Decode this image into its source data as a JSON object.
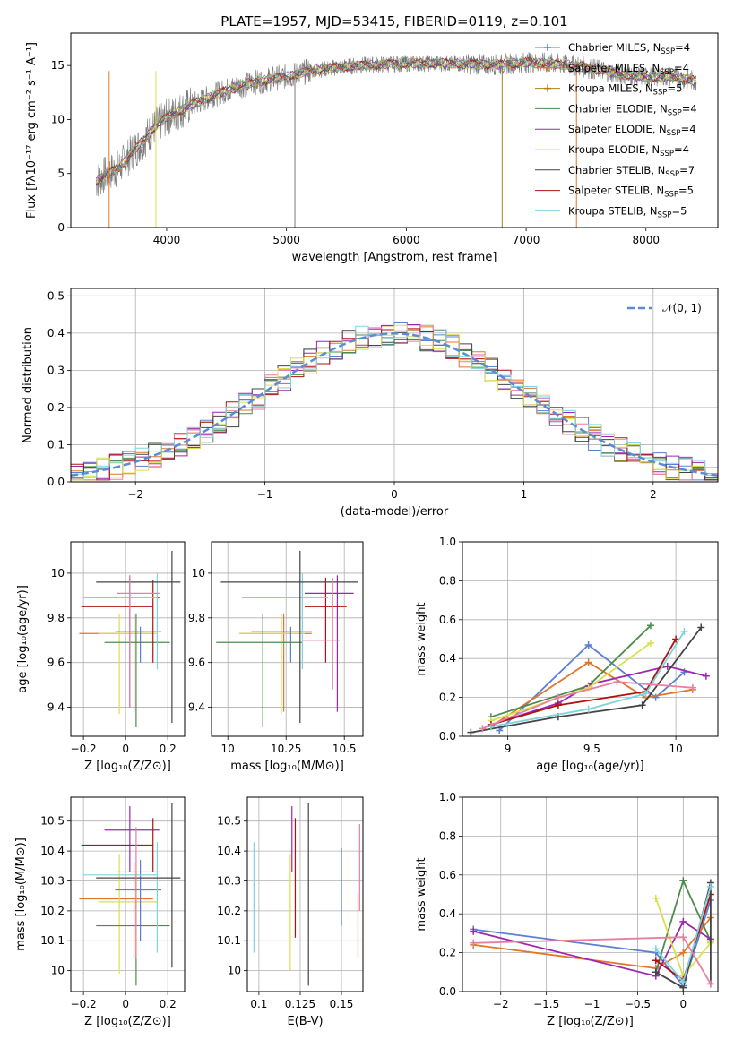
{
  "figure_title": "PLATE=1957, MJD=53415, FIBERID=0119, z=0.101",
  "chart_data": [
    {
      "id": "spectrum",
      "type": "line",
      "xlabel": "wavelength [Angstrom, rest frame]",
      "ylabel": "Flux [fλ10⁻¹⁷ erg cm⁻² s⁻¹ A⁻¹]",
      "xlim": [
        3200,
        8600
      ],
      "ylim": [
        0,
        18
      ],
      "xticks": [
        4000,
        5000,
        6000,
        7000,
        8000
      ],
      "yticks": [
        0,
        5,
        10,
        15
      ],
      "grid": false,
      "legend_position": "top-right",
      "spectrum_envelope": {
        "wavelength": [
          3400,
          3500,
          3600,
          3700,
          3800,
          3900,
          4000,
          4200,
          4400,
          4600,
          4800,
          5000,
          5200,
          5400,
          5600,
          5800,
          6000,
          6200,
          6400,
          6600,
          6800,
          7000,
          7200,
          7400,
          7600,
          7800,
          8000,
          8200,
          8400
        ],
        "flux": [
          4.2,
          5.0,
          5.5,
          6.8,
          8.0,
          9.3,
          10.2,
          11.3,
          12.3,
          13.1,
          13.6,
          14.0,
          14.5,
          14.8,
          15.0,
          15.1,
          15.2,
          15.2,
          15.2,
          15.1,
          15.1,
          15.3,
          15.2,
          15.0,
          14.6,
          14.2,
          13.9,
          14.0,
          13.6
        ]
      },
      "series": [
        {
          "name": "Chabrier MILES, N$_{SSP}$=4",
          "color": "#5b7fd4",
          "marker": "+"
        },
        {
          "name": "Salpeter MILES, N$_{SSP}$=4",
          "color": "#e0762c",
          "marker": "+"
        },
        {
          "name": "Kroupa MILES, N$_{SSP}$=5",
          "color": "#b07f18",
          "marker": "+"
        },
        {
          "name": "Chabrier ELODIE, N$_{SSP}$=4",
          "color": "#4d8b4d",
          "marker": ""
        },
        {
          "name": "Salpeter ELODIE, N$_{SSP}$=4",
          "color": "#9b27b0",
          "marker": ""
        },
        {
          "name": "Kroupa ELODIE, N$_{SSP}$=4",
          "color": "#d9e04a",
          "marker": ""
        },
        {
          "name": "Chabrier STELIB, N$_{SSP}$=7",
          "color": "#444444",
          "marker": ""
        },
        {
          "name": "Salpeter STELIB, N$_{SSP}$=5",
          "color": "#b01212",
          "marker": ""
        },
        {
          "name": "Kroupa STELIB, N$_{SSP}$=5",
          "color": "#7fd3dd",
          "marker": ""
        }
      ]
    },
    {
      "id": "residual_hist",
      "type": "bar",
      "xlabel": "(data-model)/error",
      "ylabel": "Normed distribution",
      "xlim": [
        -2.5,
        2.5
      ],
      "ylim": [
        0,
        0.52
      ],
      "xticks": [
        -2,
        -1,
        0,
        1,
        2
      ],
      "yticks": [
        0.0,
        0.1,
        0.2,
        0.3,
        0.4,
        0.5
      ],
      "grid": true,
      "legend_position": "top-right",
      "legend_label": "𝒩(0, 1)",
      "reference_curve": "gaussian(0,1)",
      "bin_width": 0.1,
      "hist_colors": [
        "#5b7fd4",
        "#e0762c",
        "#4d8b4d",
        "#9b27b0",
        "#e87fa0",
        "#b01212",
        "#444444",
        "#d9e04a",
        "#7fd3dd"
      ]
    },
    {
      "id": "age_vs_Z",
      "type": "scatter",
      "xlabel": "Z [log₁₀(Z/Z⊙)]",
      "ylabel": "age  [log₁₀(age/yr)]",
      "xlim": [
        -0.26,
        0.28
      ],
      "ylim": [
        9.27,
        10.14
      ],
      "xticks": [
        -0.2,
        0.0,
        0.2
      ],
      "yticks": [
        9.4,
        9.6,
        9.8,
        10.0
      ],
      "grid": true,
      "points": [
        {
          "x": -0.21,
          "y": 9.73,
          "xlo": -0.22,
          "xhi": 0.13,
          "ylo": 9.73,
          "yhi": 9.73,
          "color": "#e0762c"
        },
        {
          "x": 0.04,
          "y": 9.74,
          "xlo": 0.04,
          "xhi": 0.04,
          "ylo": 9.38,
          "yhi": 9.82,
          "color": "#e0762c"
        },
        {
          "x": -0.03,
          "y": 9.73,
          "xlo": -0.13,
          "xhi": 0.15,
          "ylo": 9.37,
          "yhi": 9.82,
          "color": "#d9e04a"
        },
        {
          "x": 0.07,
          "y": 9.74,
          "xlo": -0.05,
          "xhi": 0.17,
          "ylo": 9.6,
          "yhi": 9.76,
          "color": "#5b7fd4"
        },
        {
          "x": 0.02,
          "y": 9.89,
          "xlo": -0.04,
          "xhi": 0.16,
          "ylo": 9.4,
          "yhi": 9.99,
          "color": "#9b27b0"
        },
        {
          "x": 0.05,
          "y": 9.69,
          "xlo": -0.1,
          "xhi": 0.21,
          "ylo": 9.31,
          "yhi": 9.82,
          "color": "#4d8b4d"
        },
        {
          "x": 0.13,
          "y": 9.85,
          "xlo": -0.21,
          "xhi": 0.13,
          "ylo": 9.6,
          "yhi": 9.97,
          "color": "#b01212"
        },
        {
          "x": 0.15,
          "y": 9.89,
          "xlo": -0.2,
          "xhi": 0.15,
          "ylo": 9.57,
          "yhi": 10.0,
          "color": "#7fd3dd"
        },
        {
          "x": 0.22,
          "y": 9.96,
          "xlo": -0.14,
          "xhi": 0.26,
          "ylo": 9.33,
          "yhi": 10.1,
          "color": "#444444"
        },
        {
          "x": 0.02,
          "y": 9.91,
          "xlo": -0.04,
          "xhi": 0.16,
          "ylo": 9.4,
          "yhi": 9.99,
          "color": "#e87fa0"
        }
      ]
    },
    {
      "id": "age_vs_mass",
      "type": "scatter",
      "xlabel": "mass [log₁₀(M/M⊙)]",
      "ylabel": "",
      "xlim": [
        9.93,
        10.58
      ],
      "ylim": [
        9.27,
        10.14
      ],
      "xticks": [
        10.0,
        10.25,
        10.5
      ],
      "yticks": [
        9.4,
        9.6,
        9.8,
        10.0
      ],
      "grid": true,
      "points": [
        {
          "x": 10.24,
          "y": 9.73,
          "xlo": 10.05,
          "xhi": 10.36,
          "ylo": 9.38,
          "yhi": 9.82,
          "color": "#e0762c"
        },
        {
          "x": 10.23,
          "y": 9.73,
          "xlo": 10.05,
          "xhi": 10.33,
          "ylo": 9.37,
          "yhi": 9.82,
          "color": "#d9e04a"
        },
        {
          "x": 10.27,
          "y": 9.74,
          "xlo": 10.1,
          "xhi": 10.36,
          "ylo": 9.6,
          "yhi": 9.76,
          "color": "#5b7fd4"
        },
        {
          "x": 10.47,
          "y": 9.91,
          "xlo": 10.33,
          "xhi": 10.54,
          "ylo": 9.38,
          "yhi": 9.99,
          "color": "#9b27b0"
        },
        {
          "x": 10.15,
          "y": 9.69,
          "xlo": 9.95,
          "xhi": 10.32,
          "ylo": 9.31,
          "yhi": 9.82,
          "color": "#4d8b4d"
        },
        {
          "x": 10.42,
          "y": 9.85,
          "xlo": 10.33,
          "xhi": 10.51,
          "ylo": 9.6,
          "yhi": 9.98,
          "color": "#b01212"
        },
        {
          "x": 10.32,
          "y": 9.89,
          "xlo": 10.06,
          "xhi": 10.43,
          "ylo": 9.57,
          "yhi": 10.0,
          "color": "#7fd3dd"
        },
        {
          "x": 10.31,
          "y": 9.96,
          "xlo": 9.97,
          "xhi": 10.56,
          "ylo": 9.33,
          "yhi": 10.1,
          "color": "#444444"
        },
        {
          "x": 10.45,
          "y": 9.7,
          "xlo": 10.32,
          "xhi": 10.48,
          "ylo": 9.48,
          "yhi": 9.98,
          "color": "#e87fa0"
        }
      ]
    },
    {
      "id": "massweight_vs_age",
      "type": "line",
      "xlabel": "age  [log₁₀(age/yr)]",
      "ylabel": "mass weight",
      "xlim": [
        8.73,
        10.25
      ],
      "ylim": [
        0,
        1
      ],
      "xticks": [
        9.0,
        9.5,
        10.0
      ],
      "yticks": [
        0.0,
        0.2,
        0.4,
        0.6,
        0.8,
        1.0
      ],
      "grid": true,
      "series": [
        {
          "color": "#5b7fd4",
          "x": [
            8.95,
            9.48,
            9.88,
            10.05
          ],
          "y": [
            0.03,
            0.47,
            0.2,
            0.33
          ]
        },
        {
          "color": "#e0762c",
          "x": [
            8.9,
            9.48,
            9.82,
            10.1
          ],
          "y": [
            0.05,
            0.38,
            0.2,
            0.24
          ]
        },
        {
          "color": "#4d8b4d",
          "x": [
            8.9,
            9.48,
            9.85
          ],
          "y": [
            0.1,
            0.26,
            0.57
          ]
        },
        {
          "color": "#9b27b0",
          "x": [
            8.9,
            9.3,
            9.5,
            9.95,
            10.18
          ],
          "y": [
            0.06,
            0.17,
            0.27,
            0.36,
            0.31
          ]
        },
        {
          "color": "#d9e04a",
          "x": [
            8.9,
            9.48,
            9.85
          ],
          "y": [
            0.08,
            0.25,
            0.48
          ]
        },
        {
          "color": "#b01212",
          "x": [
            8.9,
            9.3,
            9.82,
            10.0
          ],
          "y": [
            0.06,
            0.16,
            0.23,
            0.5
          ]
        },
        {
          "color": "#444444",
          "x": [
            8.78,
            9.3,
            9.8,
            10.15
          ],
          "y": [
            0.02,
            0.1,
            0.16,
            0.56
          ]
        },
        {
          "color": "#7fd3dd",
          "x": [
            8.9,
            9.48,
            9.82,
            10.05
          ],
          "y": [
            0.05,
            0.14,
            0.22,
            0.54
          ]
        },
        {
          "color": "#e87fa0",
          "x": [
            8.85,
            9.3,
            9.65,
            10.1
          ],
          "y": [
            0.04,
            0.2,
            0.28,
            0.25
          ]
        }
      ]
    },
    {
      "id": "mass_vs_Z",
      "type": "scatter",
      "xlabel": "Z [log₁₀(Z/Z⊙)]",
      "ylabel": "mass [log₁₀(M/M⊙)]",
      "xlim": [
        -0.26,
        0.28
      ],
      "ylim": [
        9.93,
        10.58
      ],
      "xticks": [
        -0.2,
        0.0,
        0.2
      ],
      "yticks": [
        10.0,
        10.1,
        10.2,
        10.3,
        10.4,
        10.5
      ],
      "grid": true,
      "points": [
        {
          "x": 0.04,
          "y": 10.24,
          "xlo": -0.22,
          "xhi": 0.13,
          "ylo": 10.04,
          "yhi": 10.36,
          "color": "#e0762c"
        },
        {
          "x": -0.03,
          "y": 10.23,
          "xlo": -0.13,
          "xhi": 0.15,
          "ylo": 9.99,
          "yhi": 10.39,
          "color": "#d9e04a"
        },
        {
          "x": 0.07,
          "y": 10.27,
          "xlo": -0.05,
          "xhi": 0.17,
          "ylo": 10.1,
          "yhi": 10.37,
          "color": "#5b7fd4"
        },
        {
          "x": 0.02,
          "y": 10.47,
          "xlo": -0.1,
          "xhi": 0.16,
          "ylo": 10.33,
          "yhi": 10.55,
          "color": "#9b27b0"
        },
        {
          "x": 0.05,
          "y": 10.15,
          "xlo": -0.14,
          "xhi": 0.21,
          "ylo": 9.95,
          "yhi": 10.32,
          "color": "#4d8b4d"
        },
        {
          "x": 0.13,
          "y": 10.42,
          "xlo": -0.21,
          "xhi": 0.13,
          "ylo": 10.33,
          "yhi": 10.51,
          "color": "#b01212"
        },
        {
          "x": 0.15,
          "y": 10.32,
          "xlo": -0.2,
          "xhi": 0.15,
          "ylo": 10.06,
          "yhi": 10.43,
          "color": "#7fd3dd"
        },
        {
          "x": 0.22,
          "y": 10.31,
          "xlo": -0.14,
          "xhi": 0.26,
          "ylo": 10.01,
          "yhi": 10.56,
          "color": "#444444"
        },
        {
          "x": 0.05,
          "y": 10.33,
          "xlo": -0.05,
          "xhi": 0.16,
          "ylo": 10.04,
          "yhi": 10.48,
          "color": "#e87fa0"
        }
      ]
    },
    {
      "id": "mass_vs_EBV",
      "type": "scatter",
      "xlabel": "E(B-V)",
      "ylabel": "",
      "xlim": [
        0.093,
        0.163
      ],
      "ylim": [
        9.93,
        10.58
      ],
      "xticks": [
        0.1,
        0.125,
        0.15
      ],
      "yticks": [
        10.0,
        10.1,
        10.2,
        10.3,
        10.4,
        10.5
      ],
      "grid": true,
      "points": [
        {
          "x": 0.097,
          "ylo": 10.06,
          "yhi": 10.43,
          "color": "#7fd3dd"
        },
        {
          "x": 0.119,
          "ylo": 10.0,
          "yhi": 10.39,
          "color": "#d9e04a"
        },
        {
          "x": 0.12,
          "ylo": 10.33,
          "yhi": 10.55,
          "color": "#9b27b0"
        },
        {
          "x": 0.122,
          "ylo": 10.11,
          "yhi": 10.51,
          "color": "#b01212"
        },
        {
          "x": 0.13,
          "ylo": 9.95,
          "yhi": 10.56,
          "color": "#444444"
        },
        {
          "x": 0.15,
          "ylo": 10.15,
          "yhi": 10.41,
          "color": "#5b7fd4"
        },
        {
          "x": 0.16,
          "ylo": 10.04,
          "yhi": 10.26,
          "color": "#e0762c"
        },
        {
          "x": 0.161,
          "ylo": 10.2,
          "yhi": 10.49,
          "color": "#e87fa0"
        }
      ]
    },
    {
      "id": "massweight_vs_Z",
      "type": "line",
      "xlabel": "Z [log₁₀(Z/Z⊙)]",
      "ylabel": "mass weight",
      "xlim": [
        -2.42,
        0.38
      ],
      "ylim": [
        0,
        1
      ],
      "xticks": [
        -2.0,
        -1.5,
        -1.0,
        -0.5,
        0.0
      ],
      "yticks": [
        0.0,
        0.2,
        0.4,
        0.6,
        0.8,
        1.0
      ],
      "grid": true,
      "series": [
        {
          "color": "#5b7fd4",
          "x": [
            -2.3,
            -0.3,
            0.0,
            0.3
          ],
          "y": [
            0.32,
            0.2,
            0.03,
            0.47
          ]
        },
        {
          "color": "#e0762c",
          "x": [
            -2.3,
            -0.3,
            0.0,
            0.3
          ],
          "y": [
            0.24,
            0.12,
            0.2,
            0.38
          ]
        },
        {
          "color": "#4d8b4d",
          "x": [
            -0.3,
            0.0,
            0.3
          ],
          "y": [
            0.1,
            0.57,
            0.26
          ]
        },
        {
          "color": "#9b27b0",
          "x": [
            -2.3,
            -0.3,
            0.0,
            0.3
          ],
          "y": [
            0.31,
            0.08,
            0.36,
            0.27
          ]
        },
        {
          "color": "#d9e04a",
          "x": [
            -0.3,
            0.0,
            0.3
          ],
          "y": [
            0.48,
            0.08,
            0.25
          ]
        },
        {
          "color": "#b01212",
          "x": [
            -0.3,
            0.0,
            0.3
          ],
          "y": [
            0.16,
            0.06,
            0.5
          ]
        },
        {
          "color": "#444444",
          "x": [
            -0.3,
            0.0,
            0.3,
            0.3
          ],
          "y": [
            0.1,
            0.02,
            0.56,
            0.04
          ]
        },
        {
          "color": "#7fd3dd",
          "x": [
            -0.3,
            0.0,
            0.3
          ],
          "y": [
            0.22,
            0.05,
            0.54
          ]
        },
        {
          "color": "#e87fa0",
          "x": [
            -2.3,
            0.0,
            0.3
          ],
          "y": [
            0.25,
            0.28,
            0.04
          ]
        }
      ]
    }
  ]
}
